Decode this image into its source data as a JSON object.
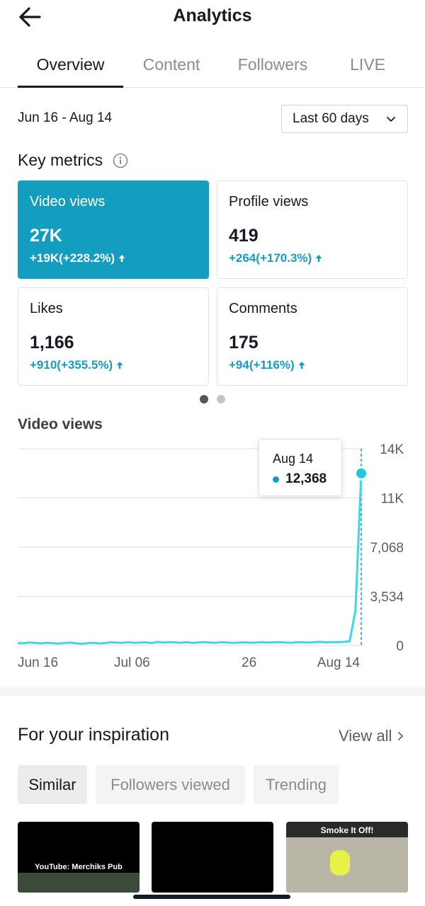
{
  "header": {
    "title": "Analytics"
  },
  "tabs": [
    {
      "label": "Overview",
      "active": true
    },
    {
      "label": "Content",
      "active": false
    },
    {
      "label": "Followers",
      "active": false
    },
    {
      "label": "LIVE",
      "active": false
    }
  ],
  "date_range": "Jun 16 - Aug 14",
  "period_select": {
    "value": "Last 60 days"
  },
  "key_metrics": {
    "title": "Key metrics",
    "cards": [
      {
        "label": "Video views",
        "value": "27K",
        "delta": "+19K(+228.2%)",
        "selected": true
      },
      {
        "label": "Profile views",
        "value": "419",
        "delta": "+264(+170.3%)",
        "selected": false
      },
      {
        "label": "Likes",
        "value": "1,166",
        "delta": "+910(+355.5%)",
        "selected": false
      },
      {
        "label": "Comments",
        "value": "175",
        "delta": "+94(+116%)",
        "selected": false
      }
    ],
    "page_dots": {
      "count": 2,
      "active": 0
    }
  },
  "colors": {
    "accent": "#139dbf",
    "line": "#3fd7e6",
    "text": "#161823"
  },
  "chart_data": {
    "type": "line",
    "title": "Video views",
    "x_tick_labels": [
      "Jun 16",
      "Jul 06",
      "26",
      "Aug 14"
    ],
    "y_tick_labels": [
      "14K",
      "11K",
      "7,068",
      "3,534",
      "0"
    ],
    "ylim": [
      0,
      14136
    ],
    "series": [
      {
        "values": [
          180,
          160,
          220,
          190,
          150,
          200,
          170,
          140,
          180,
          210,
          160,
          120,
          170,
          200,
          150,
          180,
          230,
          210,
          190,
          240,
          200,
          210,
          230,
          180,
          260,
          220,
          250,
          230,
          200,
          240,
          190,
          220,
          250,
          210,
          200,
          240,
          220,
          190,
          210,
          230,
          200,
          220,
          240,
          210,
          230,
          250,
          220,
          200,
          240,
          230,
          210,
          240,
          260,
          230,
          250,
          240,
          260,
          300,
          2500,
          12368
        ]
      }
    ],
    "tooltip": {
      "date": "Aug 14",
      "value": "12,368"
    },
    "grid": true
  },
  "inspiration": {
    "title": "For your inspiration",
    "view_all": "View all",
    "chips": [
      {
        "label": "Similar",
        "active": true
      },
      {
        "label": "Followers viewed",
        "active": false
      },
      {
        "label": "Trending",
        "active": false
      }
    ],
    "thumbnails": [
      {
        "caption": "YouTube: Merchiks Pub"
      },
      {
        "caption": ""
      },
      {
        "caption": "Smoke It Off!"
      }
    ]
  },
  "icons": {
    "back": "arrow-left-icon",
    "info": "info-circle-icon",
    "chevron": "chevron-down-icon",
    "trend_up": "arrow-up-icon",
    "view_all": "chevron-right-icon"
  }
}
